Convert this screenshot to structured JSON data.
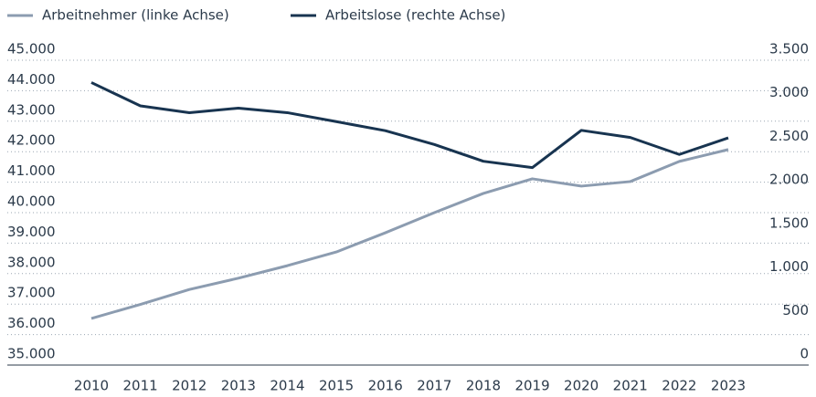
{
  "chart_data": {
    "type": "line",
    "categories": [
      "2010",
      "2011",
      "2012",
      "2013",
      "2014",
      "2015",
      "2016",
      "2017",
      "2018",
      "2019",
      "2020",
      "2021",
      "2022",
      "2023"
    ],
    "series": [
      {
        "name": "Arbeitnehmer (linke Achse)",
        "color": "#8c9cb0",
        "axis": "y",
        "values": [
          36530,
          36990,
          37480,
          37850,
          38260,
          38710,
          39340,
          40000,
          40630,
          41110,
          40870,
          41020,
          41680,
          42070
        ]
      },
      {
        "name": "Arbeitslose (rechte Achse)",
        "color": "#183450",
        "axis": "y2",
        "values": [
          3244,
          2976,
          2897,
          2950,
          2898,
          2795,
          2691,
          2533,
          2340,
          2267,
          2695,
          2613,
          2418,
          2609
        ]
      }
    ],
    "ylim": [
      35000,
      45000
    ],
    "yticks": [
      {
        "value": 35000,
        "label": "35.000"
      },
      {
        "value": 36000,
        "label": "36.000"
      },
      {
        "value": 37000,
        "label": "37.000"
      },
      {
        "value": 38000,
        "label": "38.000"
      },
      {
        "value": 39000,
        "label": "39.000"
      },
      {
        "value": 40000,
        "label": "40.000"
      },
      {
        "value": 41000,
        "label": "41.000"
      },
      {
        "value": 42000,
        "label": "42.000"
      },
      {
        "value": 43000,
        "label": "43.000"
      },
      {
        "value": 44000,
        "label": "44.000"
      },
      {
        "value": 45000,
        "label": "45.000"
      }
    ],
    "y2lim": [
      0,
      3500
    ],
    "y2ticks": [
      0,
      500,
      {
        "value": 1000,
        "label": "1.000"
      },
      {
        "value": 1500,
        "label": "1.500"
      },
      {
        "value": 2000,
        "label": "2.000"
      },
      {
        "value": 2500,
        "label": "2.500"
      },
      {
        "value": 3000,
        "label": "3.000"
      },
      {
        "value": 3500,
        "label": "3.500"
      }
    ],
    "grid": true,
    "legend": "top-left"
  }
}
